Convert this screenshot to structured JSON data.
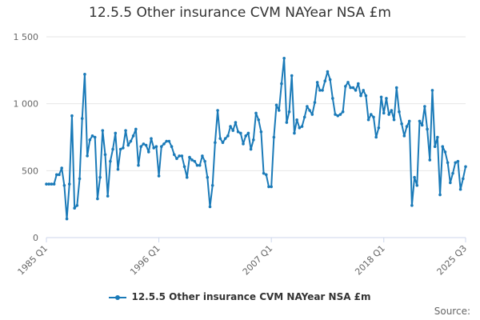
{
  "chart_data": {
    "type": "line",
    "title": "12.5.5 Other insurance CVM NAYear NSA £m",
    "xlabel": "",
    "ylabel": "",
    "ylim": [
      0,
      1500
    ],
    "y_ticks": [
      0,
      500,
      1000,
      1500
    ],
    "y_tick_labels": [
      "0",
      "500",
      "1 000",
      "1 500"
    ],
    "x_ticks": [
      "1985 Q1",
      "1996 Q1",
      "2007 Q1",
      "2018 Q1",
      "2025 Q3"
    ],
    "grid": true,
    "legend_position": "bottom",
    "series": [
      {
        "name": "12.5.5 Other insurance CVM NAYear NSA £m",
        "color": "#1a7ab8",
        "values": [
          400,
          400,
          400,
          400,
          470,
          470,
          520,
          390,
          140,
          400,
          910,
          220,
          240,
          440,
          890,
          1220,
          610,
          730,
          760,
          750,
          290,
          450,
          800,
          620,
          310,
          570,
          660,
          780,
          510,
          660,
          670,
          800,
          690,
          720,
          760,
          810,
          540,
          680,
          700,
          690,
          640,
          740,
          670,
          680,
          460,
          680,
          700,
          720,
          720,
          680,
          620,
          590,
          610,
          610,
          530,
          450,
          600,
          580,
          570,
          540,
          540,
          610,
          570,
          450,
          230,
          390,
          710,
          950,
          740,
          710,
          740,
          760,
          830,
          800,
          860,
          790,
          780,
          700,
          760,
          780,
          660,
          730,
          930,
          880,
          790,
          480,
          470,
          380,
          380,
          750,
          990,
          950,
          1150,
          1340,
          860,
          940,
          1210,
          780,
          880,
          820,
          830,
          900,
          980,
          950,
          920,
          1010,
          1160,
          1100,
          1100,
          1170,
          1240,
          1180,
          1040,
          920,
          910,
          920,
          940,
          1130,
          1160,
          1120,
          1120,
          1100,
          1150,
          1060,
          1100,
          1060,
          880,
          920,
          900,
          750,
          820,
          1050,
          930,
          1040,
          920,
          950,
          880,
          1120,
          940,
          850,
          760,
          830,
          870,
          240,
          450,
          390,
          870,
          840,
          980,
          810,
          580,
          1100,
          680,
          750,
          320,
          680,
          640,
          560,
          410,
          480,
          560,
          570,
          360,
          440,
          530
        ]
      }
    ]
  },
  "legend": {
    "label": "12.5.5 Other insurance CVM NAYear NSA £m"
  },
  "footer": {
    "source_label": "Source:"
  }
}
